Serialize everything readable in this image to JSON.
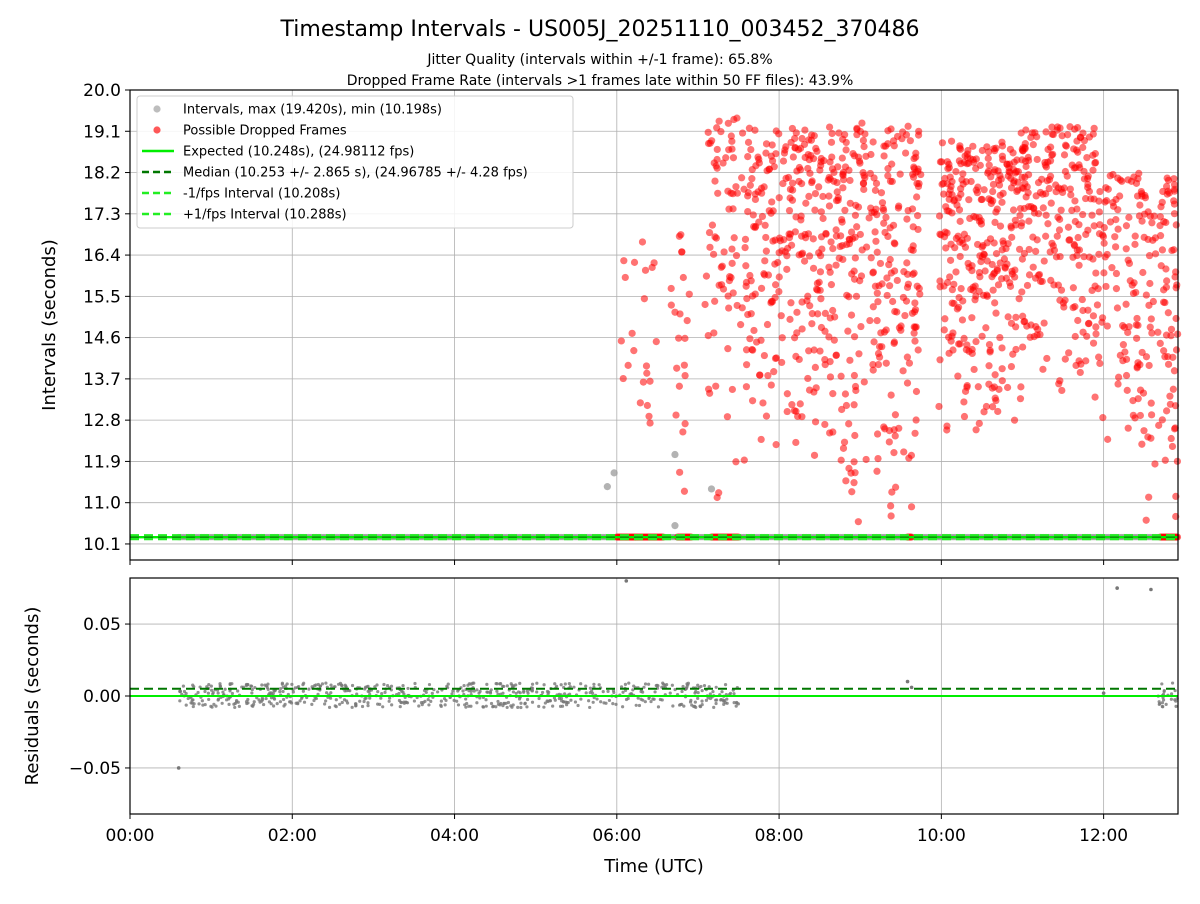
{
  "figure": {
    "title": "Timestamp Intervals - US005J_20251110_003452_370486",
    "subtitle_1": "Jitter Quality (intervals within +/-1 frame): 65.8%",
    "subtitle_2": "Dropped Frame Rate (intervals >1 frames late within 50 FF files): 43.9%"
  },
  "chart_data": [
    {
      "type": "scatter",
      "panel": "intervals",
      "ylabel": "Intervals (seconds)",
      "xlabel": "",
      "xlim": [
        "00:00",
        "12:55"
      ],
      "ylim": [
        9.75,
        20.0
      ],
      "yticks": [
        "10.1",
        "11.0",
        "11.9",
        "12.8",
        "13.7",
        "14.6",
        "15.5",
        "16.4",
        "17.3",
        "18.2",
        "19.1",
        "20.0"
      ],
      "ytick_values": [
        10.1,
        11.0,
        11.9,
        12.8,
        13.7,
        14.6,
        15.5,
        16.4,
        17.3,
        18.2,
        19.1,
        20.0
      ],
      "grid": true,
      "legend_position": "top-left",
      "legend": [
        {
          "label": "Intervals, max (19.420s), min (10.198s)",
          "marker": "circle",
          "color": "#999999"
        },
        {
          "label": "Possible Dropped Frames",
          "marker": "circle",
          "color": "#ff0000"
        },
        {
          "label": "Expected (10.248s), (24.98112 fps)",
          "marker": "solid",
          "color": "#00ee00"
        },
        {
          "label": "Median (10.253 +/- 2.865 s), (24.96785 +/- 4.28 fps)",
          "marker": "dashed",
          "color": "#007700"
        },
        {
          "label": "-1/fps Interval (10.208s)",
          "marker": "dashed",
          "color": "#22ee22"
        },
        {
          "label": "+1/fps Interval (10.288s)",
          "marker": "dashed",
          "color": "#22ee22"
        }
      ],
      "series": [
        {
          "name": "Intervals, max (19.420s), min (10.198s)",
          "kind": "baseline",
          "x_range": [
            "00:36",
            "12:55"
          ],
          "y": 10.25,
          "color": "#999999"
        },
        {
          "name": "Intervals, max (19.420s), min (10.198s)",
          "kind": "points",
          "color": "#999999",
          "points": [
            [
              "05:53",
              11.35
            ],
            [
              "05:58",
              11.65
            ],
            [
              "06:43",
              12.05
            ],
            [
              "06:43",
              10.5
            ],
            [
              "07:10",
              11.3
            ]
          ]
        },
        {
          "name": "Possible Dropped Frames",
          "kind": "cluster",
          "color": "#ff0000",
          "clusters": [
            {
              "x_range": [
                "06:00",
                "06:30"
              ],
              "y_range": [
                10.3,
                16.7
              ],
              "count": 22
            },
            {
              "x_range": [
                "06:40",
                "06:55"
              ],
              "y_range": [
                10.9,
                17.0
              ],
              "count": 22
            },
            {
              "x_range": [
                "07:05",
                "07:35"
              ],
              "y_range": [
                10.6,
                19.4
              ],
              "count": 75
            },
            {
              "x_range": [
                "07:35",
                "08:45"
              ],
              "y_range": [
                11.9,
                19.2
              ],
              "count": 280
            },
            {
              "x_range": [
                "08:45",
                "09:45"
              ],
              "y_range": [
                10.3,
                19.3
              ],
              "count": 260
            },
            {
              "x_range": [
                "09:58",
                "10:55"
              ],
              "y_range": [
                12.4,
                18.9
              ],
              "count": 280
            },
            {
              "x_range": [
                "10:55",
                "11:55"
              ],
              "y_range": [
                13.0,
                19.2
              ],
              "count": 240
            },
            {
              "x_range": [
                "11:55",
                "12:55"
              ],
              "y_range": [
                10.3,
                18.2
              ],
              "count": 200
            }
          ],
          "baseline_runs": [
            [
              "06:00",
              "06:35"
            ],
            [
              "06:45",
              "06:55"
            ],
            [
              "07:10",
              "07:30"
            ],
            [
              "09:35",
              "09:38"
            ],
            [
              "12:42",
              "12:55"
            ]
          ],
          "baseline_y": 10.25
        },
        {
          "name": "Expected (10.248s), (24.98112 fps)",
          "kind": "hline",
          "y": 10.248,
          "color": "#00ee00"
        },
        {
          "name": "Median (10.253 +/- 2.865 s), (24.96785 +/- 4.28 fps)",
          "kind": "hline",
          "y": 10.253,
          "color": "#007700"
        },
        {
          "name": "-1/fps Interval (10.208s)",
          "kind": "hline",
          "y": 10.208,
          "color": "#22ee22"
        },
        {
          "name": "+1/fps Interval (10.288s)",
          "kind": "hline",
          "y": 10.288,
          "color": "#22ee22"
        }
      ]
    },
    {
      "type": "scatter",
      "panel": "residuals",
      "ylabel": "Residuals (seconds)",
      "xlabel": "Time (UTC)",
      "xlim": [
        "00:00",
        "12:55"
      ],
      "ylim": [
        -0.082,
        0.082
      ],
      "yticks": [
        "0.05",
        "0.00",
        "−0.05"
      ],
      "ytick_values": [
        0.05,
        0.0,
        -0.05
      ],
      "xticks": [
        "00:00",
        "02:00",
        "04:00",
        "06:00",
        "08:00",
        "10:00",
        "12:00"
      ],
      "grid": true,
      "series": [
        {
          "kind": "band",
          "x_range": [
            "00:36",
            "07:30"
          ],
          "y_range": [
            -0.008,
            0.009
          ],
          "color": "#777777"
        },
        {
          "kind": "band",
          "x_range": [
            "12:40",
            "12:55"
          ],
          "y_range": [
            -0.008,
            0.009
          ],
          "color": "#777777"
        },
        {
          "kind": "points",
          "color": "#777777",
          "points": [
            [
              "00:36",
              -0.05
            ],
            [
              "06:07",
              0.08
            ],
            [
              "12:10",
              0.075
            ],
            [
              "12:35",
              0.074
            ],
            [
              "09:35",
              0.01
            ],
            [
              "09:38",
              0.006
            ],
            [
              "12:00",
              0.002
            ]
          ]
        },
        {
          "kind": "hline",
          "y": 0.0,
          "color": "#00ee00"
        },
        {
          "kind": "hline",
          "y": 0.005,
          "color": "#007700",
          "dashed": true
        }
      ]
    }
  ]
}
